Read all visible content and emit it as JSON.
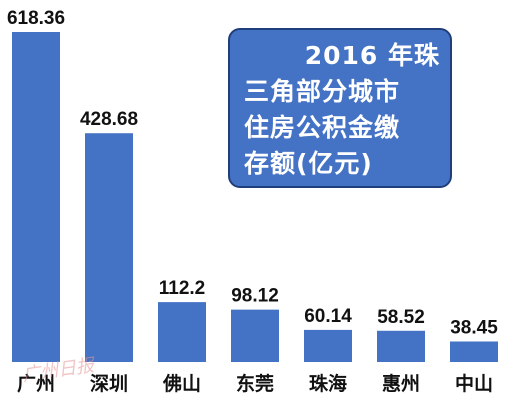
{
  "title_lines": [
    "2016 年珠",
    "三角部分城市",
    "住房公积金缴",
    "存额(亿元)"
  ],
  "watermark": "广州日报",
  "colors": {
    "bar": "#4472c4",
    "title_bg": "#4472c4"
  },
  "chart_data": {
    "type": "bar",
    "title": "2016 年珠三角部分城市住房公积金缴存额(亿元)",
    "categories": [
      "广州",
      "深圳",
      "佛山",
      "东莞",
      "珠海",
      "惠州",
      "中山"
    ],
    "values": [
      618.36,
      428.68,
      112.2,
      98.12,
      60.14,
      58.52,
      38.45
    ],
    "value_labels": [
      "618.36",
      "428.68",
      "112.2",
      "98.12",
      "60.14",
      "58.52",
      "38.45"
    ],
    "xlabel": "",
    "ylabel": "",
    "ylim": [
      0,
      618.36
    ],
    "grid": false,
    "legend": "none"
  }
}
